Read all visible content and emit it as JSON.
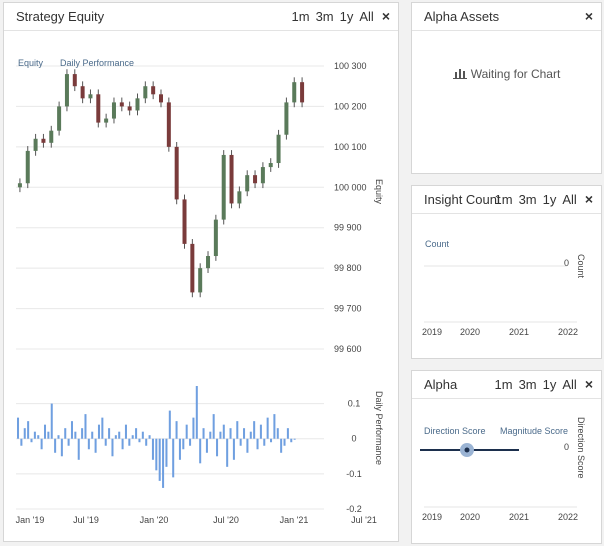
{
  "panels": {
    "strategy_equity": {
      "title": "Strategy Equity",
      "ranges": [
        "1m",
        "3m",
        "1y",
        "All"
      ],
      "close": "×"
    },
    "alpha_assets": {
      "title": "Alpha Assets",
      "close": "×",
      "waiting_text": "Waiting for Chart",
      "waiting_icon": "bar-chart-icon"
    },
    "insight_count": {
      "title": "Insight Count",
      "ranges": [
        "1m",
        "3m",
        "1y",
        "All"
      ],
      "close": "×"
    },
    "alpha": {
      "title": "Alpha",
      "ranges": [
        "1m",
        "3m",
        "1y",
        "All"
      ],
      "close": "×"
    }
  },
  "colors": {
    "up": "#5a7a5a",
    "down": "#7a3b3b",
    "bar": "#6f9fe0",
    "accent": "#1c2f4d"
  },
  "chart_data": [
    {
      "type": "candlestick",
      "series": [
        {
          "name": "Equity"
        },
        {
          "name": "Daily Performance"
        }
      ],
      "yaxis_ticks": [
        "100 300",
        "100 200",
        "100 100",
        "100 000",
        "99 900",
        "99 800",
        "99 700",
        "99 600"
      ],
      "ylabel": "Equity",
      "ylim": [
        99600,
        100300
      ],
      "x_ticks": [
        "Jan '19",
        "Jul '19",
        "Jan '20",
        "Jul '20",
        "Jan '21",
        "Jul '21"
      ],
      "close_series": [
        100010,
        100090,
        100120,
        100110,
        100140,
        100200,
        100280,
        100250,
        100220,
        100230,
        100160,
        100170,
        100210,
        100200,
        100190,
        100220,
        100250,
        100230,
        100210,
        100100,
        99970,
        99860,
        99740,
        99800,
        99830,
        99920,
        100080,
        99960,
        99990,
        100030,
        100010,
        100050,
        100060,
        100130,
        100210,
        100260,
        100210
      ]
    },
    {
      "type": "bar",
      "ylabel": "Daily Performance",
      "y_ticks": [
        "0.1",
        "0",
        "-0.1",
        "-0.2"
      ],
      "ylim": [
        -0.2,
        0.15
      ],
      "values": [
        0.06,
        -0.02,
        0.03,
        0.05,
        -0.01,
        0.02,
        0.01,
        -0.03,
        0.04,
        0.02,
        0.1,
        -0.04,
        0.01,
        -0.05,
        0.03,
        -0.02,
        0.05,
        0.02,
        -0.06,
        0.03,
        0.07,
        -0.03,
        0.02,
        -0.04,
        0.04,
        0.06,
        -0.02,
        0.03,
        -0.05,
        0.01,
        0.02,
        -0.03,
        0.04,
        -0.02,
        0.01,
        0.03,
        -0.01,
        0.02,
        -0.02,
        0.01,
        -0.06,
        -0.09,
        -0.12,
        -0.14,
        -0.08,
        0.08,
        -0.11,
        0.05,
        -0.06,
        -0.03,
        0.04,
        -0.02,
        0.06,
        0.15,
        -0.07,
        0.03,
        -0.04,
        0.02,
        0.07,
        -0.05,
        0.02,
        0.04,
        -0.08,
        0.03,
        -0.06,
        0.05,
        -0.02,
        0.03,
        -0.04,
        0.02,
        0.05,
        -0.03,
        0.04,
        -0.02,
        0.06,
        -0.01,
        0.07,
        0.03,
        -0.04,
        -0.02,
        0.03,
        -0.01,
        0
      ]
    },
    {
      "type": "line",
      "title": "Insight Count",
      "series": [
        {
          "name": "Count"
        }
      ],
      "ylabel": "Count",
      "y_ticks": [
        "0"
      ],
      "x_ticks": [
        "2019",
        "2020",
        "2021",
        "2022"
      ]
    },
    {
      "type": "line",
      "title": "Alpha",
      "series": [
        {
          "name": "Direction Score"
        },
        {
          "name": "Magnitude Score"
        }
      ],
      "ylabel": "Direction Score",
      "y_ticks": [
        "0"
      ],
      "x_ticks": [
        "2019",
        "2020",
        "2021",
        "2022"
      ]
    }
  ]
}
